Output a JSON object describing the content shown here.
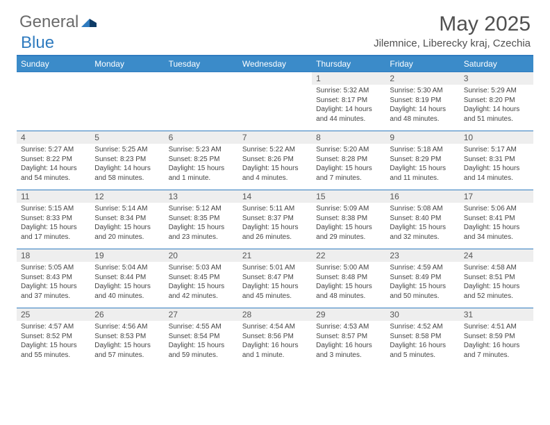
{
  "logo": {
    "word1": "General",
    "word2": "Blue"
  },
  "title": "May 2025",
  "location": "Jilemnice, Liberecky kraj, Czechia",
  "colors": {
    "header_bg": "#3b8bc9",
    "header_text": "#ffffff",
    "rule": "#2f7bbf",
    "daynum_bg": "#eeeeee",
    "text": "#444444",
    "logo_gray": "#6a6a6a",
    "logo_blue": "#2f7bbf"
  },
  "typography": {
    "title_fontsize": 30,
    "location_fontsize": 15,
    "dow_fontsize": 12,
    "daynum_fontsize": 12,
    "body_fontsize": 10
  },
  "layout": {
    "columns": 7,
    "rows": 5,
    "blank_leading_cells": 4
  },
  "dow": [
    "Sunday",
    "Monday",
    "Tuesday",
    "Wednesday",
    "Thursday",
    "Friday",
    "Saturday"
  ],
  "days": [
    {
      "n": 1,
      "sunrise": "5:32 AM",
      "sunset": "8:17 PM",
      "daylight": "14 hours and 44 minutes."
    },
    {
      "n": 2,
      "sunrise": "5:30 AM",
      "sunset": "8:19 PM",
      "daylight": "14 hours and 48 minutes."
    },
    {
      "n": 3,
      "sunrise": "5:29 AM",
      "sunset": "8:20 PM",
      "daylight": "14 hours and 51 minutes."
    },
    {
      "n": 4,
      "sunrise": "5:27 AM",
      "sunset": "8:22 PM",
      "daylight": "14 hours and 54 minutes."
    },
    {
      "n": 5,
      "sunrise": "5:25 AM",
      "sunset": "8:23 PM",
      "daylight": "14 hours and 58 minutes."
    },
    {
      "n": 6,
      "sunrise": "5:23 AM",
      "sunset": "8:25 PM",
      "daylight": "15 hours and 1 minute."
    },
    {
      "n": 7,
      "sunrise": "5:22 AM",
      "sunset": "8:26 PM",
      "daylight": "15 hours and 4 minutes."
    },
    {
      "n": 8,
      "sunrise": "5:20 AM",
      "sunset": "8:28 PM",
      "daylight": "15 hours and 7 minutes."
    },
    {
      "n": 9,
      "sunrise": "5:18 AM",
      "sunset": "8:29 PM",
      "daylight": "15 hours and 11 minutes."
    },
    {
      "n": 10,
      "sunrise": "5:17 AM",
      "sunset": "8:31 PM",
      "daylight": "15 hours and 14 minutes."
    },
    {
      "n": 11,
      "sunrise": "5:15 AM",
      "sunset": "8:33 PM",
      "daylight": "15 hours and 17 minutes."
    },
    {
      "n": 12,
      "sunrise": "5:14 AM",
      "sunset": "8:34 PM",
      "daylight": "15 hours and 20 minutes."
    },
    {
      "n": 13,
      "sunrise": "5:12 AM",
      "sunset": "8:35 PM",
      "daylight": "15 hours and 23 minutes."
    },
    {
      "n": 14,
      "sunrise": "5:11 AM",
      "sunset": "8:37 PM",
      "daylight": "15 hours and 26 minutes."
    },
    {
      "n": 15,
      "sunrise": "5:09 AM",
      "sunset": "8:38 PM",
      "daylight": "15 hours and 29 minutes."
    },
    {
      "n": 16,
      "sunrise": "5:08 AM",
      "sunset": "8:40 PM",
      "daylight": "15 hours and 32 minutes."
    },
    {
      "n": 17,
      "sunrise": "5:06 AM",
      "sunset": "8:41 PM",
      "daylight": "15 hours and 34 minutes."
    },
    {
      "n": 18,
      "sunrise": "5:05 AM",
      "sunset": "8:43 PM",
      "daylight": "15 hours and 37 minutes."
    },
    {
      "n": 19,
      "sunrise": "5:04 AM",
      "sunset": "8:44 PM",
      "daylight": "15 hours and 40 minutes."
    },
    {
      "n": 20,
      "sunrise": "5:03 AM",
      "sunset": "8:45 PM",
      "daylight": "15 hours and 42 minutes."
    },
    {
      "n": 21,
      "sunrise": "5:01 AM",
      "sunset": "8:47 PM",
      "daylight": "15 hours and 45 minutes."
    },
    {
      "n": 22,
      "sunrise": "5:00 AM",
      "sunset": "8:48 PM",
      "daylight": "15 hours and 48 minutes."
    },
    {
      "n": 23,
      "sunrise": "4:59 AM",
      "sunset": "8:49 PM",
      "daylight": "15 hours and 50 minutes."
    },
    {
      "n": 24,
      "sunrise": "4:58 AM",
      "sunset": "8:51 PM",
      "daylight": "15 hours and 52 minutes."
    },
    {
      "n": 25,
      "sunrise": "4:57 AM",
      "sunset": "8:52 PM",
      "daylight": "15 hours and 55 minutes."
    },
    {
      "n": 26,
      "sunrise": "4:56 AM",
      "sunset": "8:53 PM",
      "daylight": "15 hours and 57 minutes."
    },
    {
      "n": 27,
      "sunrise": "4:55 AM",
      "sunset": "8:54 PM",
      "daylight": "15 hours and 59 minutes."
    },
    {
      "n": 28,
      "sunrise": "4:54 AM",
      "sunset": "8:56 PM",
      "daylight": "16 hours and 1 minute."
    },
    {
      "n": 29,
      "sunrise": "4:53 AM",
      "sunset": "8:57 PM",
      "daylight": "16 hours and 3 minutes."
    },
    {
      "n": 30,
      "sunrise": "4:52 AM",
      "sunset": "8:58 PM",
      "daylight": "16 hours and 5 minutes."
    },
    {
      "n": 31,
      "sunrise": "4:51 AM",
      "sunset": "8:59 PM",
      "daylight": "16 hours and 7 minutes."
    }
  ],
  "labels": {
    "sunrise": "Sunrise:",
    "sunset": "Sunset:",
    "daylight": "Daylight:"
  }
}
